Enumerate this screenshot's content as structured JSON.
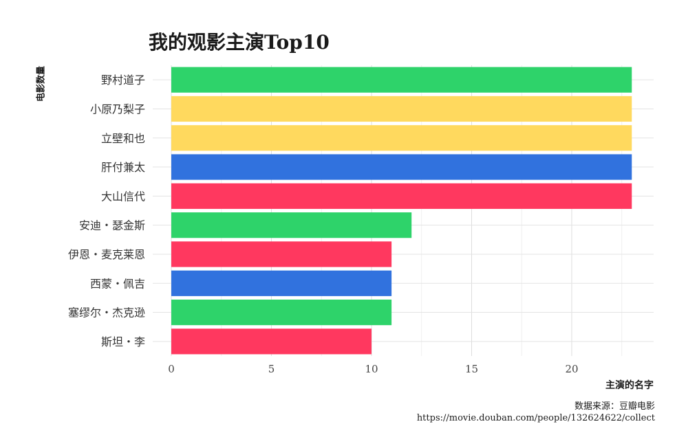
{
  "chart_data": {
    "type": "bar",
    "orientation": "horizontal",
    "title": "我的观影主演Top10",
    "ylabel": "电影数量",
    "xlabel": "主演的名字",
    "categories": [
      "野村道子",
      "小原乃梨子",
      "立壁和也",
      "肝付兼太",
      "大山信代",
      "安迪・瑟金斯",
      "伊恩・麦克莱恩",
      "西蒙・佩吉",
      "塞缪尔・杰克逊",
      "斯坦・李"
    ],
    "values": [
      23,
      23,
      23,
      23,
      23,
      12,
      11,
      11,
      11,
      10
    ],
    "bar_colors": [
      "#2ED36A",
      "#FFD95E",
      "#FFD95E",
      "#3172DE",
      "#FF385F",
      "#2ED36A",
      "#FF385F",
      "#3172DE",
      "#2ED36A",
      "#FF385F"
    ],
    "xticks": [
      0,
      5,
      10,
      15,
      20
    ],
    "xlim": [
      0,
      24
    ],
    "grid": true
  },
  "caption": {
    "line1": "数据来源：豆瓣电影",
    "line2": "https://movie.douban.com/people/132624622/collect"
  }
}
